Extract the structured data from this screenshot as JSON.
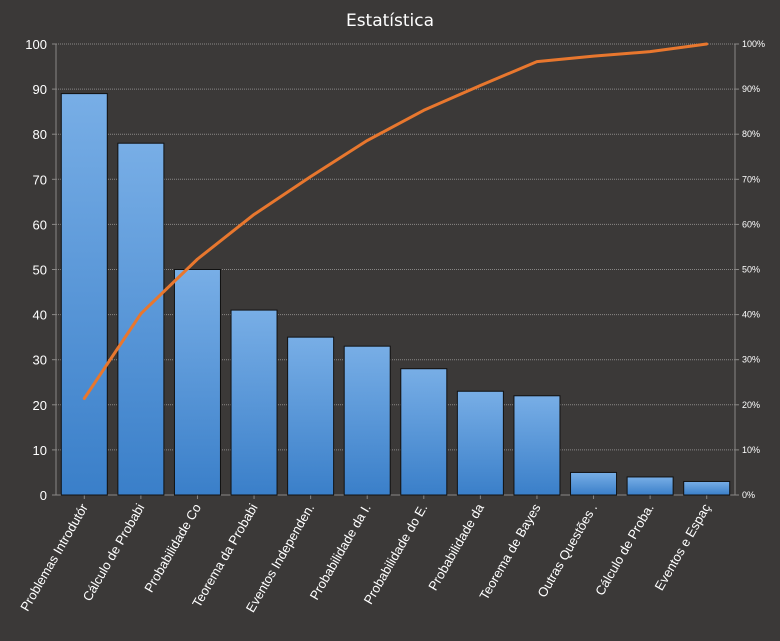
{
  "chart_data": {
    "type": "bar",
    "title": "Estatística",
    "categories": [
      "Problemas Introdutór",
      "Cálculo de Probabi",
      "Probabilidade Co",
      "Teorema da Probabi",
      "Eventos Independen.",
      "Probabilidade da I.",
      "Probabilidade do E.",
      "Probabilidade da",
      "Teorema de Bayes",
      "Outras Questões .",
      "Cálculo de Proba.",
      "Eventos e Espaç"
    ],
    "series": [
      {
        "type": "bar",
        "axis": "left",
        "values": [
          89,
          78,
          50,
          41,
          35,
          33,
          28,
          23,
          22,
          5,
          4,
          3
        ]
      },
      {
        "type": "line",
        "axis": "right",
        "values": [
          21.4,
          40.2,
          52.3,
          62.2,
          70.6,
          78.6,
          85.3,
          90.8,
          96.1,
          97.3,
          98.3,
          100
        ]
      }
    ],
    "ylim": [
      0,
      100
    ],
    "y_ticks": [
      "0",
      "10",
      "20",
      "30",
      "40",
      "50",
      "60",
      "70",
      "80",
      "90",
      "100"
    ],
    "y2lim": [
      0,
      100
    ],
    "y2_ticks": [
      "0%",
      "10%",
      "20%",
      "30%",
      "40%",
      "50%",
      "60%",
      "70%",
      "80%",
      "90%",
      "100%"
    ],
    "grid": true,
    "legend": "none",
    "colors": {
      "background": "#3b3938",
      "bar_top": "#78aee6",
      "bar_bottom": "#3a7fc9",
      "bar_edge": "#111111",
      "line": "#e8772e",
      "grid": "#8a8886",
      "text": "#ffffff"
    }
  }
}
